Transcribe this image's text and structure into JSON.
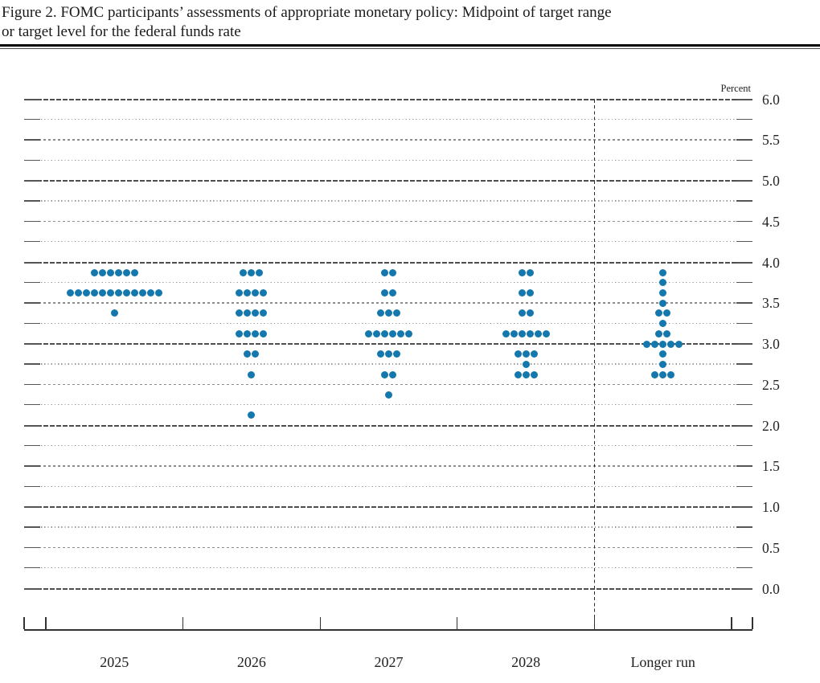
{
  "title": {
    "line1": "Figure 2. FOMC participants’ assessments of appropriate monetary policy: Midpoint of target range",
    "line2": "or target level for the federal funds rate"
  },
  "chart_data": {
    "type": "scatter",
    "subtype": "fomc-dot-plot",
    "title": "FOMC participants’ assessments of appropriate monetary policy: Midpoint of target range or target level for the federal funds rate",
    "unit_label": "Percent",
    "ylim": [
      0.0,
      6.0
    ],
    "ytick_minor_step": 0.25,
    "ytick_label_step": 0.5,
    "ytick_labels": [
      "6.0",
      "5.5",
      "5.0",
      "4.5",
      "4.0",
      "3.5",
      "3.0",
      "2.5",
      "2.0",
      "1.5",
      "1.0",
      "0.5",
      "0.0"
    ],
    "grid": true,
    "legend": "none",
    "categories": [
      "2025",
      "2026",
      "2027",
      "2028",
      "Longer run"
    ],
    "separator_before_category": "Longer run",
    "dot_color": "#1478ae",
    "series": [
      {
        "name": "2025",
        "dots": [
          {
            "rate": 3.875,
            "count": 6
          },
          {
            "rate": 3.625,
            "count": 12
          },
          {
            "rate": 3.375,
            "count": 1
          }
        ]
      },
      {
        "name": "2026",
        "dots": [
          {
            "rate": 3.875,
            "count": 3
          },
          {
            "rate": 3.625,
            "count": 4
          },
          {
            "rate": 3.375,
            "count": 4
          },
          {
            "rate": 3.125,
            "count": 4
          },
          {
            "rate": 2.875,
            "count": 2
          },
          {
            "rate": 2.625,
            "count": 1
          },
          {
            "rate": 2.125,
            "count": 1
          }
        ]
      },
      {
        "name": "2027",
        "dots": [
          {
            "rate": 3.875,
            "count": 2
          },
          {
            "rate": 3.625,
            "count": 2
          },
          {
            "rate": 3.375,
            "count": 3
          },
          {
            "rate": 3.125,
            "count": 6
          },
          {
            "rate": 2.875,
            "count": 3
          },
          {
            "rate": 2.625,
            "count": 2
          },
          {
            "rate": 2.375,
            "count": 1
          }
        ]
      },
      {
        "name": "2028",
        "dots": [
          {
            "rate": 3.875,
            "count": 2
          },
          {
            "rate": 3.625,
            "count": 2
          },
          {
            "rate": 3.375,
            "count": 2
          },
          {
            "rate": 3.125,
            "count": 6
          },
          {
            "rate": 2.875,
            "count": 3
          },
          {
            "rate": 2.75,
            "count": 1
          },
          {
            "rate": 2.625,
            "count": 3
          }
        ]
      },
      {
        "name": "Longer run",
        "dots": [
          {
            "rate": 3.875,
            "count": 1
          },
          {
            "rate": 3.75,
            "count": 1
          },
          {
            "rate": 3.625,
            "count": 1
          },
          {
            "rate": 3.5,
            "count": 1
          },
          {
            "rate": 3.375,
            "count": 2
          },
          {
            "rate": 3.25,
            "count": 1
          },
          {
            "rate": 3.125,
            "count": 2
          },
          {
            "rate": 3.0,
            "count": 5
          },
          {
            "rate": 2.875,
            "count": 1
          },
          {
            "rate": 2.75,
            "count": 1
          },
          {
            "rate": 2.625,
            "count": 3
          }
        ]
      }
    ]
  }
}
